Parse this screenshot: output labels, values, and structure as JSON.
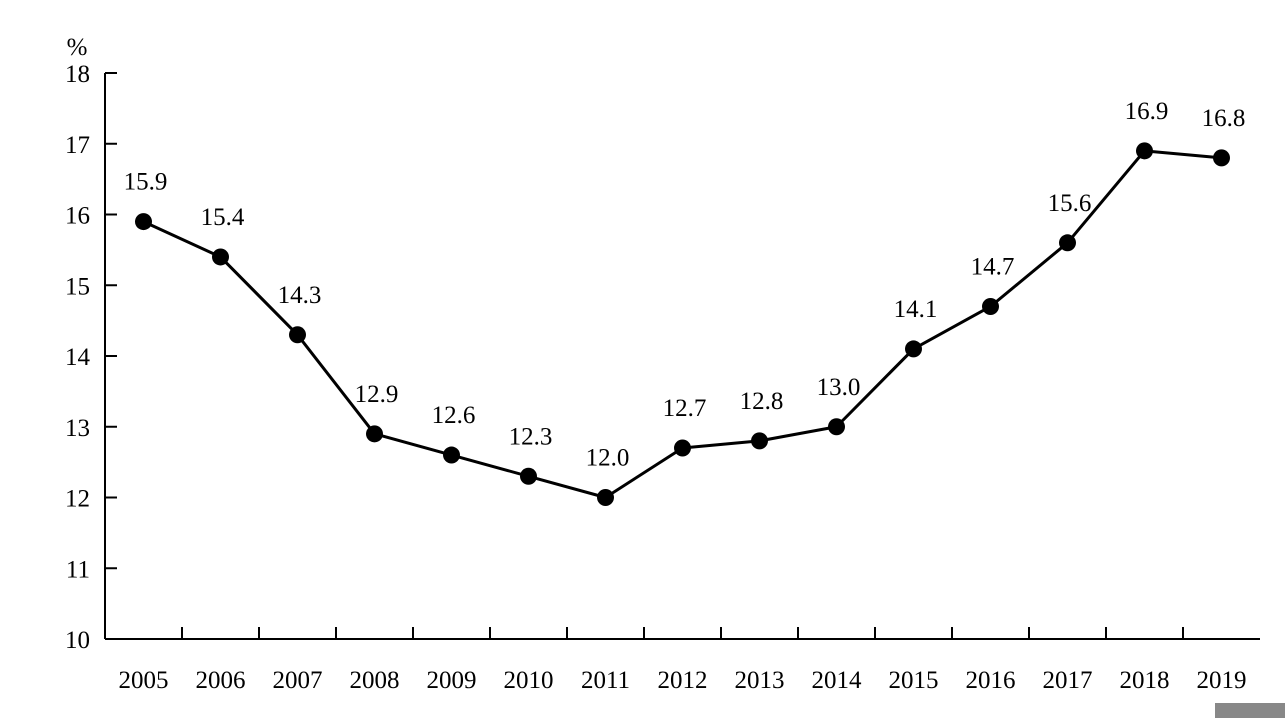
{
  "chart_data": {
    "type": "line",
    "title": "",
    "xlabel": "",
    "ylabel": "%",
    "categories": [
      "2005",
      "2006",
      "2007",
      "2008",
      "2009",
      "2010",
      "2011",
      "2012",
      "2013",
      "2014",
      "2015",
      "2016",
      "2017",
      "2018",
      "2019"
    ],
    "series": [
      {
        "values": [
          15.9,
          15.4,
          14.3,
          12.9,
          12.6,
          12.3,
          12.0,
          12.7,
          12.8,
          13.0,
          14.1,
          14.7,
          15.6,
          16.9,
          16.8
        ],
        "labels": [
          "15.9",
          "15.4",
          "14.3",
          "12.9",
          "12.6",
          "12.3",
          "12.0",
          "12.7",
          "12.8",
          "13.0",
          "14.1",
          "14.7",
          "15.6",
          "16.9",
          "16.8"
        ],
        "color": "#000000"
      }
    ],
    "ylim": [
      10,
      18
    ],
    "yticks": [
      "10",
      "11",
      "12",
      "13",
      "14",
      "15",
      "16",
      "17",
      "18"
    ],
    "grid": false,
    "legend": "none"
  }
}
